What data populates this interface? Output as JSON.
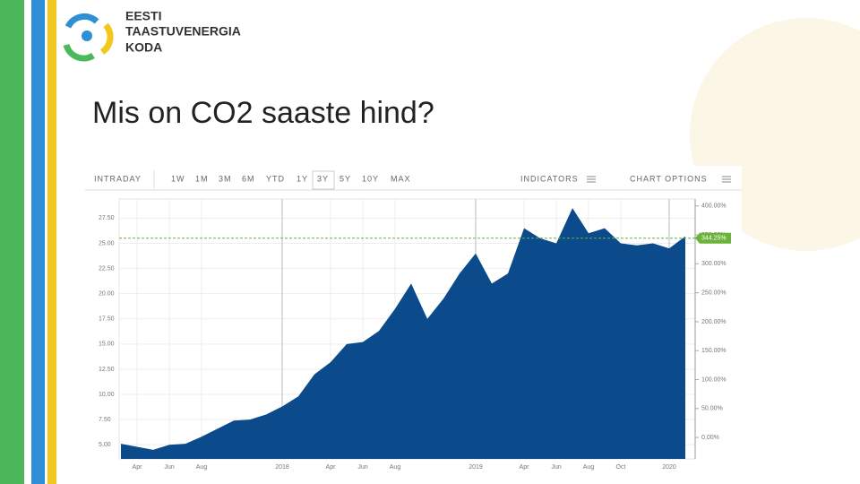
{
  "slide": {
    "logo": [
      "EESTI",
      "TAASTUVENERGIA",
      "KODA"
    ],
    "title": "Mis on CO2 saaste hind?"
  },
  "toolbar": {
    "ranges": [
      "INTRADAY",
      "1W",
      "1M",
      "3M",
      "6M",
      "YTD",
      "1Y",
      "3Y",
      "5Y",
      "10Y",
      "MAX"
    ],
    "selected": 7,
    "indicators": "INDICATORS",
    "options": "CHART OPTIONS"
  },
  "chart_data": {
    "type": "area",
    "x": [
      "2017-03",
      "2017-04",
      "2017-05",
      "2017-06",
      "2017-07",
      "2017-08",
      "2017-09",
      "2017-10",
      "2017-11",
      "2017-12",
      "2018-01",
      "2018-02",
      "2018-03",
      "2018-04",
      "2018-05",
      "2018-06",
      "2018-07",
      "2018-08",
      "2018-09",
      "2018-10",
      "2018-11",
      "2018-12",
      "2019-01",
      "2019-02",
      "2019-03",
      "2019-04",
      "2019-05",
      "2019-06",
      "2019-07",
      "2019-08",
      "2019-09",
      "2019-10",
      "2019-11",
      "2019-12",
      "2020-01",
      "2020-02"
    ],
    "series": [
      {
        "name": "CO2",
        "color": "#0b4a8b",
        "values": [
          5.1,
          4.8,
          4.5,
          5.0,
          5.1,
          5.8,
          6.6,
          7.4,
          7.5,
          8.0,
          8.8,
          9.8,
          12.0,
          13.2,
          15.0,
          15.2,
          16.3,
          18.5,
          21.0,
          17.5,
          19.5,
          22.0,
          24.0,
          21.0,
          22.0,
          26.5,
          25.5,
          25.0,
          28.5,
          26.0,
          26.5,
          25.0,
          24.8,
          25.0,
          24.5,
          25.7
        ]
      }
    ],
    "xticks": [
      {
        "value": "2017-04",
        "label": "Apr"
      },
      {
        "value": "2017-06",
        "label": "Jun"
      },
      {
        "value": "2017-08",
        "label": "Aug"
      },
      {
        "value": "2018-01",
        "label": "2018"
      },
      {
        "value": "2018-04",
        "label": "Apr"
      },
      {
        "value": "2018-06",
        "label": "Jun"
      },
      {
        "value": "2018-08",
        "label": "Aug"
      },
      {
        "value": "2019-01",
        "label": "2019"
      },
      {
        "value": "2019-04",
        "label": "Apr"
      },
      {
        "value": "2019-06",
        "label": "Jun"
      },
      {
        "value": "2019-08",
        "label": "Aug"
      },
      {
        "value": "2019-10",
        "label": "Oct"
      },
      {
        "value": "2020-01",
        "label": "2020"
      }
    ],
    "ylim": [
      3.6,
      29.4
    ],
    "yticks": [
      {
        "value": 5,
        "label": "5.00"
      },
      {
        "value": 7.5,
        "label": "7.50"
      },
      {
        "value": 10,
        "label": "10.00"
      },
      {
        "value": 12.5,
        "label": "12.50"
      },
      {
        "value": 15,
        "label": "15.00"
      },
      {
        "value": 17.5,
        "label": "17.50"
      },
      {
        "value": 20,
        "label": "20.00"
      },
      {
        "value": 22.5,
        "label": "22.50"
      },
      {
        "value": 25,
        "label": "25.00"
      },
      {
        "value": 27.5,
        "label": "27.50"
      }
    ],
    "y2lim": [
      -37,
      412
    ],
    "y2ticks": [
      {
        "value": 0,
        "label": "0.00%"
      },
      {
        "value": 50,
        "label": "50.00%"
      },
      {
        "value": 100,
        "label": "100.00%"
      },
      {
        "value": 150,
        "label": "150.00%"
      },
      {
        "value": 200,
        "label": "200.00%"
      },
      {
        "value": 250,
        "label": "250.00%"
      },
      {
        "value": 300,
        "label": "300.00%"
      },
      {
        "value": 350,
        "label": "350.00%"
      },
      {
        "value": 400,
        "label": "400.00%"
      }
    ],
    "current": {
      "value": 344.25,
      "label": "344.25%",
      "axis": "y2",
      "color": "#6bb33a"
    },
    "grid": true
  }
}
